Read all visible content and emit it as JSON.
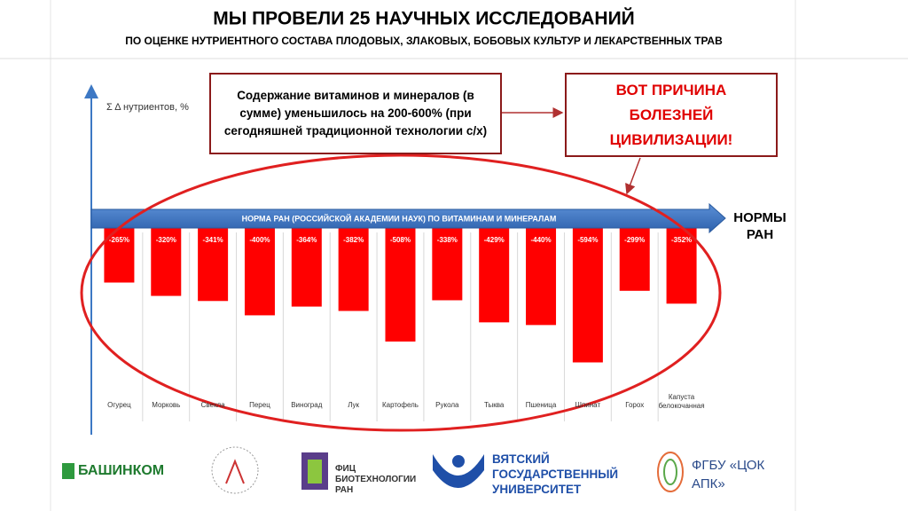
{
  "chart_data": {
    "type": "bar",
    "title": "МЫ ПРОВЕЛИ 25 НАУЧНЫХ ИССЛЕДОВАНИЙ",
    "subtitle": "ПО ОЦЕНКЕ НУТРИЕНТНОГО СОСТАВА ПЛОДОВЫХ, ЗЛАКОВЫХ, БОБОВЫХ КУЛЬТУР И ЛЕКАРСТВЕННЫХ ТРАВ",
    "y_label": "Σ Δ нутриентов,  %",
    "callout": "Содержание витаминов и минералов (в сумме) уменьшилось на 200-600% (при сегодняшней традиционной технологии с/х)",
    "conclusion": "ВОТ ПРИЧИНА БОЛЕЗНЕЙ ЦИВИЛИЗАЦИИ!",
    "norm_label": "НОРМА РАН (РОССИЙСКОЙ АКАДЕМИИ НАУК) ПО ВИТАМИНАМ И МИНЕРАЛАМ",
    "norm_end_label": "НОРМЫ РАН",
    "categories": [
      "Огурец",
      "Морковь",
      "Свекла",
      "Перец",
      "Виноград",
      "Лук",
      "Картофель",
      "Рукола",
      "Тыква",
      "Пшеница",
      "Шпинат",
      "Горох",
      "Капуста белокочанная"
    ],
    "values": [
      -265,
      -320,
      -341,
      -400,
      -364,
      -382,
      -508,
      -338,
      -429,
      -440,
      -594,
      -299,
      -352
    ],
    "value_labels": [
      "-265%",
      "-320%",
      "-341%",
      "-400%",
      "-364%",
      "-382%",
      "-508%",
      "-338%",
      "-429%",
      "-440%",
      "-594%",
      "-299%",
      "-352%"
    ],
    "color": "#ff0000",
    "ylim": [
      -700,
      0
    ]
  },
  "footer": {
    "logos": [
      "БАШИНКОМ",
      "ФИЦ БИОТЕХНОЛОГИИ РАН",
      "ВЯТСКИЙ ГОСУДАРСТВЕННЫЙ УНИВЕРСИТЕТ",
      "ФГБУ «ЦОК АПК»"
    ]
  }
}
